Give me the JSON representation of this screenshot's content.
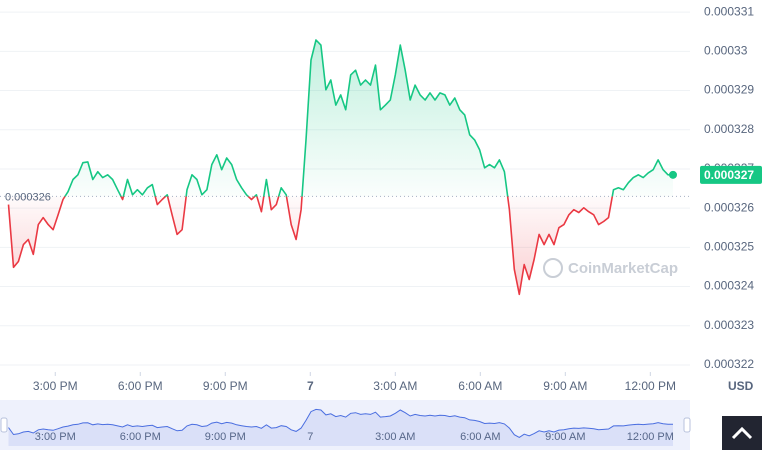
{
  "chart_data": {
    "type": "line",
    "x": [
      13.35,
      13.525,
      13.7,
      13.875,
      14.05,
      14.225,
      14.4,
      14.575,
      14.75,
      14.925,
      15.1,
      15.275,
      15.45,
      15.625,
      15.8,
      15.975,
      16.15,
      16.325,
      16.5,
      16.675,
      16.85,
      17.025,
      17.2,
      17.375,
      17.55,
      17.725,
      17.9,
      18.075,
      18.25,
      18.425,
      18.6,
      18.775,
      18.95,
      19.125,
      19.3,
      19.475,
      19.65,
      19.825,
      20,
      20.175,
      20.35,
      20.525,
      20.7,
      20.875,
      21.05,
      21.225,
      21.4,
      21.575,
      21.75,
      21.925,
      22.1,
      22.275,
      22.45,
      22.625,
      22.8,
      22.975,
      23.15,
      23.325,
      23.5,
      23.675,
      23.85,
      24.025,
      24.2,
      24.375,
      24.55,
      24.725,
      24.9,
      25.075,
      25.25,
      25.425,
      25.6,
      25.775,
      25.95,
      26.125,
      26.3,
      26.475,
      26.65,
      26.825,
      27,
      27.175,
      27.35,
      27.525,
      27.7,
      27.875,
      28.05,
      28.225,
      28.4,
      28.575,
      28.75,
      28.925,
      29.1,
      29.275,
      29.45,
      29.625,
      29.8,
      29.975,
      30.15,
      30.325,
      30.5,
      30.675,
      30.85,
      31.025,
      31.2,
      31.375,
      31.55,
      31.725,
      31.9,
      32.075,
      32.25,
      32.425,
      32.6,
      32.775,
      32.95,
      33.125,
      33.3,
      33.475,
      33.65,
      33.825,
      34,
      34.175,
      34.35,
      34.525,
      34.7,
      34.875,
      35.05,
      35.225,
      35.4,
      35.575,
      35.75,
      35.925,
      36.1,
      36.275,
      36.45,
      36.625,
      36.8
    ],
    "values": [
      0.00032609,
      0.00032449,
      0.00032464,
      0.00032507,
      0.0003252,
      0.00032482,
      0.00032558,
      0.00032576,
      0.00032558,
      0.00032545,
      0.00032583,
      0.00032622,
      0.00032642,
      0.00032673,
      0.00032685,
      0.00032716,
      0.00032718,
      0.00032673,
      0.00032693,
      0.00032678,
      0.00032685,
      0.00032673,
      0.00032647,
      0.00032622,
      0.00032673,
      0.00032634,
      0.00032647,
      0.00032634,
      0.00032652,
      0.0003266,
      0.00032609,
      0.00032622,
      0.00032634,
      0.00032583,
      0.00032533,
      0.00032545,
      0.00032647,
      0.00032685,
      0.00032673,
      0.00032634,
      0.00032647,
      0.00032711,
      0.00032736,
      0.00032698,
      0.00032728,
      0.00032711,
      0.00032673,
      0.00032652,
      0.00032634,
      0.00032622,
      0.00032634,
      0.00032591,
      0.00032673,
      0.00032596,
      0.00032609,
      0.00032652,
      0.00032634,
      0.00032558,
      0.0003252,
      0.00032596,
      0.00032774,
      0.00032978,
      0.00033029,
      0.00033016,
      0.00032902,
      0.00032927,
      0.00032863,
      0.00032889,
      0.00032851,
      0.0003294,
      0.00032952,
      0.00032914,
      0.00032927,
      0.00032914,
      0.00032965,
      0.00032851,
      0.00032863,
      0.00032876,
      0.0003294,
      0.00033016,
      0.00032952,
      0.00032876,
      0.00032914,
      0.00032889,
      0.00032876,
      0.00032894,
      0.00032876,
      0.00032894,
      0.00032889,
      0.00032863,
      0.00032881,
      0.00032851,
      0.00032838,
      0.00032787,
      0.00032774,
      0.00032749,
      0.00032703,
      0.00032711,
      0.00032703,
      0.00032723,
      0.00032693,
      0.00032596,
      0.00032444,
      0.0003238,
      0.00032456,
      0.00032418,
      0.00032469,
      0.00032533,
      0.00032507,
      0.00032533,
      0.00032507,
      0.0003255,
      0.00032558,
      0.00032583,
      0.00032596,
      0.00032589,
      0.00032601,
      0.00032591,
      0.00032583,
      0.00032558,
      0.00032566,
      0.00032576,
      0.00032647,
      0.00032652,
      0.00032647,
      0.00032665,
      0.00032678,
      0.00032685,
      0.00032678,
      0.0003269,
      0.00032698,
      0.00032723,
      0.00032698,
      0.00032685,
      0.00032685
    ],
    "xlim": [
      13.05,
      37.4
    ],
    "xticks": [
      {
        "value": 15,
        "label": "3:00 PM"
      },
      {
        "value": 18,
        "label": "6:00 PM"
      },
      {
        "value": 21,
        "label": "9:00 PM"
      },
      {
        "value": 24,
        "label": "7"
      },
      {
        "value": 27,
        "label": "3:00 AM"
      },
      {
        "value": 30,
        "label": "6:00 AM"
      },
      {
        "value": 33,
        "label": "9:00 AM"
      },
      {
        "value": 36,
        "label": "12:00 PM"
      }
    ],
    "ylim": [
      0.00032182,
      0.00033131
    ],
    "yticks": [
      0.000322,
      0.000323,
      0.000324,
      0.000325,
      0.000326,
      0.000327,
      0.000328,
      0.000329,
      0.00033,
      0.000331
    ],
    "y_axis_label": "USD",
    "baseline": {
      "value": 0.0003263,
      "label": "0.000326"
    },
    "current_price_label": "0.000327",
    "watermark": "CoinMarketCap",
    "up_color": "#16c784",
    "down_color": "#ea3943",
    "navigator_color": "#4a6ee0",
    "grid": true
  }
}
